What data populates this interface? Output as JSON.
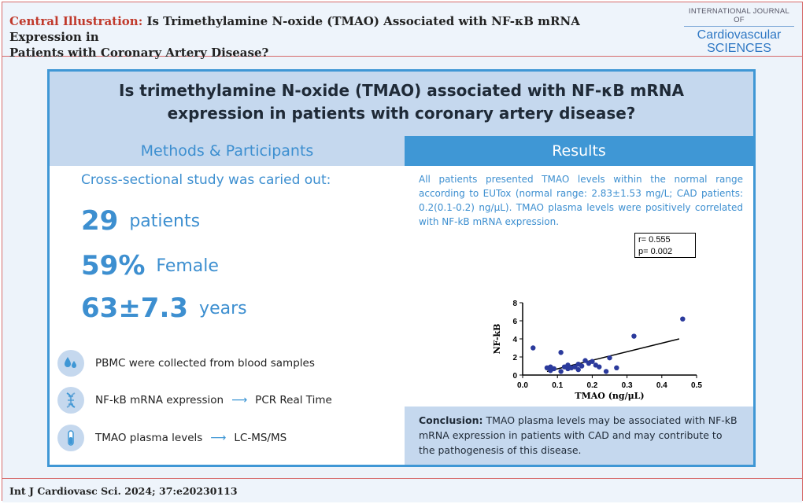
{
  "header": {
    "label": "Central Illustration:",
    "title_line1": " Is Trimethylamine N-oxide (TMAO) Associated with NF-κB mRNA Expression in",
    "title_line2": "Patients with Coronary Artery Disease?",
    "journal_line1": "INTERNATIONAL JOURNAL OF",
    "journal_line2": "Cardiovascular",
    "journal_line3": "SCIENCES"
  },
  "question": {
    "line1": "Is trimethylamine N-oxide (TMAO) associated with NF-κB mRNA",
    "line2": "expression in patients with coronary artery disease?"
  },
  "methods": {
    "heading": "Methods & Participants",
    "study": "Cross-sectional study was caried out:",
    "stats": [
      {
        "value": "29",
        "label": "patients"
      },
      {
        "value": "59%",
        "label": "Female"
      },
      {
        "value": "63±7.3",
        "label": "years"
      }
    ],
    "items": [
      {
        "icon": "blood-drops-icon",
        "text": "PBMC were collected from blood samples",
        "target": ""
      },
      {
        "icon": "dna-icon",
        "text": "NF-kB mRNA expression",
        "target": "PCR Real Time"
      },
      {
        "icon": "test-tube-icon",
        "text": "TMAO plasma levels",
        "target": "LC-MS/MS"
      }
    ]
  },
  "results": {
    "heading": "Results",
    "text": "All patients presented TMAO levels within the normal range according to EUTox (normal range: 2.83±1.53 mg/L; CAD patients: 0.2(0.1-0.2) ng/μL). TMAO plasma levels were positively correlated with NF-kB mRNA expression.",
    "conclusion_label": "Conclusion:",
    "conclusion_text": " TMAO plasma levels may be associated with NF-kB mRNA expression in patients with CAD and may contribute to the pathogenesis of this disease."
  },
  "chart_data": {
    "type": "scatter",
    "xlabel": "TMAO (ng/μL)",
    "ylabel": "NF-kB",
    "xlim": [
      0.0,
      0.5
    ],
    "ylim": [
      0,
      8
    ],
    "xticks": [
      "0.0",
      "0.1",
      "0.2",
      "0.3",
      "0.4",
      "0.5"
    ],
    "yticks": [
      "0",
      "2",
      "4",
      "6",
      "8"
    ],
    "annotation_r": "r= 0.555",
    "annotation_p": "p= 0.002",
    "points": [
      {
        "x": 0.03,
        "y": 3.0
      },
      {
        "x": 0.07,
        "y": 0.8
      },
      {
        "x": 0.08,
        "y": 0.5
      },
      {
        "x": 0.08,
        "y": 0.9
      },
      {
        "x": 0.09,
        "y": 0.7
      },
      {
        "x": 0.11,
        "y": 0.4
      },
      {
        "x": 0.11,
        "y": 2.5
      },
      {
        "x": 0.12,
        "y": 0.9
      },
      {
        "x": 0.13,
        "y": 0.7
      },
      {
        "x": 0.13,
        "y": 1.1
      },
      {
        "x": 0.14,
        "y": 0.8
      },
      {
        "x": 0.15,
        "y": 0.9
      },
      {
        "x": 0.16,
        "y": 0.6
      },
      {
        "x": 0.16,
        "y": 1.2
      },
      {
        "x": 0.17,
        "y": 1.0
      },
      {
        "x": 0.18,
        "y": 1.6
      },
      {
        "x": 0.19,
        "y": 1.3
      },
      {
        "x": 0.2,
        "y": 1.5
      },
      {
        "x": 0.21,
        "y": 1.1
      },
      {
        "x": 0.22,
        "y": 0.9
      },
      {
        "x": 0.24,
        "y": 0.4
      },
      {
        "x": 0.25,
        "y": 1.9
      },
      {
        "x": 0.27,
        "y": 0.8
      },
      {
        "x": 0.32,
        "y": 4.3
      },
      {
        "x": 0.46,
        "y": 6.2
      }
    ],
    "trendline": {
      "x": [
        0.07,
        0.45
      ],
      "y": [
        0.4,
        4.0
      ]
    },
    "colors": {
      "points": "#2b3a9c",
      "line": "#000000"
    }
  },
  "footer": {
    "citation": "Int J Cardiovasc Sci. 2024; 37:e20230113"
  }
}
